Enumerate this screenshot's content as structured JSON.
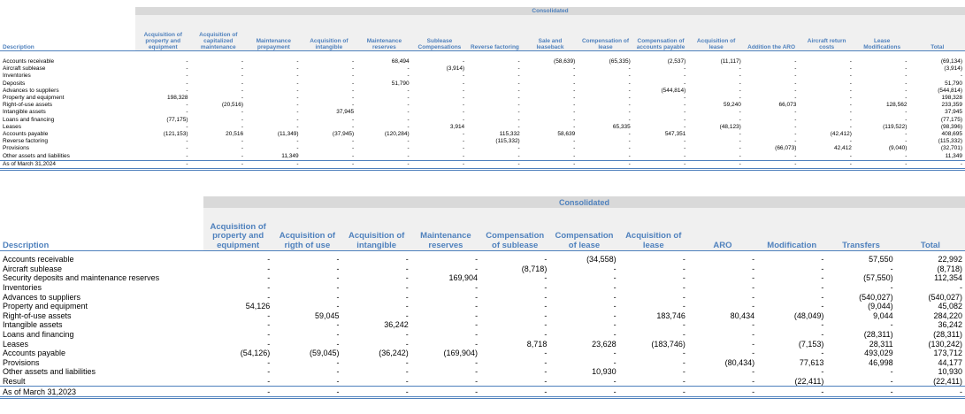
{
  "table1": {
    "header": "Consolidated",
    "description": "Description",
    "columns": [
      "Acquisition of property and equipment",
      "Acquisition of capitalized maintenance",
      "Maintenance prepayment",
      "Acquisition of intangible",
      "Maintenance reserves",
      "Sublease Compensations",
      "Reverse factoring",
      "Sale and leaseback",
      "Compensation of lease",
      "Compensation of accounts payable",
      "Acquisition of lease",
      "Addition the ARO",
      "Aircraft return costs",
      "Lease Modifications",
      "Total"
    ],
    "rows": [
      {
        "label": "Accounts receivable",
        "values": [
          "-",
          "-",
          "-",
          "-",
          "68,494",
          "-",
          "-",
          "(58,639)",
          "(65,335)",
          "(2,537)",
          "(11,117)",
          "-",
          "-",
          "-",
          "(69,134)"
        ]
      },
      {
        "label": "Aircraft sublease",
        "values": [
          "-",
          "-",
          "-",
          "-",
          "-",
          "(3,914)",
          "-",
          "-",
          "-",
          "-",
          "-",
          "-",
          "-",
          "-",
          "(3,914)"
        ]
      },
      {
        "label": "Inventories",
        "values": [
          "-",
          "-",
          "-",
          "-",
          "-",
          "-",
          "-",
          "-",
          "-",
          "-",
          "-",
          "-",
          "-",
          "-",
          "-"
        ]
      },
      {
        "label": "Deposits",
        "values": [
          "-",
          "-",
          "-",
          "-",
          "51,790",
          "-",
          "-",
          "-",
          "-",
          "-",
          "-",
          "-",
          "-",
          "-",
          "51,790"
        ]
      },
      {
        "label": "Advances to suppliers",
        "values": [
          "-",
          "-",
          "-",
          "-",
          "-",
          "-",
          "-",
          "-",
          "-",
          "(544,814)",
          "-",
          "-",
          "-",
          "-",
          "(544,814)"
        ]
      },
      {
        "label": "Property and equipment",
        "values": [
          "198,328",
          "-",
          "-",
          "-",
          "-",
          "-",
          "-",
          "-",
          "-",
          "-",
          "-",
          "-",
          "-",
          "-",
          "198,328"
        ]
      },
      {
        "label": "Right-of-use assets",
        "values": [
          "-",
          "(20,516)",
          "-",
          "-",
          "-",
          "-",
          "-",
          "-",
          "-",
          "-",
          "59,240",
          "66,073",
          "-",
          "128,562",
          "233,359"
        ]
      },
      {
        "label": "Intangible assets",
        "values": [
          "-",
          "-",
          "-",
          "37,945",
          "-",
          "-",
          "-",
          "-",
          "-",
          "-",
          "-",
          "-",
          "-",
          "-",
          "37,945"
        ]
      },
      {
        "label": "Loans and financing",
        "values": [
          "(77,175)",
          "-",
          "-",
          "-",
          "-",
          "-",
          "-",
          "-",
          "-",
          "-",
          "-",
          "-",
          "-",
          "-",
          "(77,175)"
        ]
      },
      {
        "label": "Leases",
        "values": [
          "-",
          "-",
          "-",
          "-",
          "-",
          "3,914",
          "-",
          "-",
          "65,335",
          "-",
          "(48,123)",
          "-",
          "-",
          "(119,522)",
          "(98,396)"
        ]
      },
      {
        "label": "Accounts payable",
        "values": [
          "(121,153)",
          "20,516",
          "(11,349)",
          "(37,945)",
          "(120,284)",
          "-",
          "115,332",
          "58,639",
          "-",
          "547,351",
          "-",
          "-",
          "(42,412)",
          "-",
          "408,695"
        ]
      },
      {
        "label": "Reverse factoring",
        "values": [
          "-",
          "-",
          "-",
          "-",
          "-",
          "-",
          "(115,332)",
          "-",
          "-",
          "-",
          "-",
          "-",
          "-",
          "-",
          "(115,332)"
        ]
      },
      {
        "label": "Provisions",
        "values": [
          "-",
          "-",
          "-",
          "-",
          "-",
          "-",
          "-",
          "-",
          "-",
          "-",
          "-",
          "(66,073)",
          "42,412",
          "(9,040)",
          "(32,701)"
        ]
      },
      {
        "label": "Other assets and liabilities",
        "values": [
          "-",
          "-",
          "11,349",
          "-",
          "-",
          "-",
          "-",
          "-",
          "-",
          "-",
          "-",
          "-",
          "-",
          "-",
          "11,349"
        ]
      },
      {
        "label": "As of March 31,2024",
        "values": [
          "-",
          "-",
          "-",
          "-",
          "-",
          "-",
          "-",
          "-",
          "-",
          "-",
          "-",
          "-",
          "-",
          "-",
          "-"
        ]
      }
    ]
  },
  "table2": {
    "header": "Consolidated",
    "description": "Description",
    "columns": [
      "Acquisition of property and equipment",
      "Acquisition of rigth of use",
      "Acquisition of intangible",
      "Maintenance reserves",
      "Compensation of sublease",
      "Compensation of lease",
      "Acquisition of lease",
      "ARO",
      "Modification",
      "Transfers",
      "Total"
    ],
    "rows": [
      {
        "label": "Accounts receivable",
        "values": [
          "-",
          "-",
          "-",
          "-",
          "-",
          "(34,558)",
          "-",
          "-",
          "-",
          "57,550",
          "22,992"
        ]
      },
      {
        "label": "Aircraft sublease",
        "values": [
          "-",
          "-",
          "-",
          "-",
          "(8,718)",
          "-",
          "-",
          "-",
          "-",
          "-",
          "(8,718)"
        ]
      },
      {
        "label": "Security deposits and maintenance reserves",
        "values": [
          "-",
          "-",
          "-",
          "169,904",
          "-",
          "-",
          "-",
          "-",
          "-",
          "(57,550)",
          "112,354"
        ]
      },
      {
        "label": "Inventories",
        "values": [
          "-",
          "-",
          "-",
          "-",
          "-",
          "-",
          "-",
          "-",
          "-",
          "-",
          "-"
        ]
      },
      {
        "label": "Advances to suppliers",
        "values": [
          "-",
          "-",
          "-",
          "-",
          "-",
          "-",
          "-",
          "-",
          "-",
          "(540,027)",
          "(540,027)"
        ]
      },
      {
        "label": "Property and equipment",
        "values": [
          "54,126",
          "-",
          "-",
          "-",
          "-",
          "-",
          "-",
          "-",
          "-",
          "(9,044)",
          "45,082"
        ]
      },
      {
        "label": "Right-of-use assets",
        "values": [
          "-",
          "59,045",
          "-",
          "-",
          "-",
          "-",
          "183,746",
          "80,434",
          "(48,049)",
          "9,044",
          "284,220"
        ]
      },
      {
        "label": "Intangible assets",
        "values": [
          "-",
          "-",
          "36,242",
          "-",
          "-",
          "-",
          "-",
          "-",
          "-",
          "-",
          "36,242"
        ]
      },
      {
        "label": "Loans and financing",
        "values": [
          "-",
          "-",
          "-",
          "-",
          "-",
          "-",
          "-",
          "-",
          "-",
          "(28,311)",
          "(28,311)"
        ]
      },
      {
        "label": "Leases",
        "values": [
          "-",
          "-",
          "-",
          "-",
          "8,718",
          "23,628",
          "(183,746)",
          "-",
          "(7,153)",
          "28,311",
          "(130,242)"
        ]
      },
      {
        "label": "Accounts payable",
        "values": [
          "(54,126)",
          "(59,045)",
          "(36,242)",
          "(169,904)",
          "-",
          "-",
          "-",
          "-",
          "-",
          "493,029",
          "173,712"
        ]
      },
      {
        "label": "Provisions",
        "values": [
          "-",
          "-",
          "-",
          "-",
          "-",
          "-",
          "-",
          "(80,434)",
          "77,613",
          "46,998",
          "44,177"
        ]
      },
      {
        "label": "Other assets and liabilities",
        "values": [
          "-",
          "-",
          "-",
          "-",
          "-",
          "10,930",
          "-",
          "-",
          "-",
          "-",
          "10,930"
        ]
      },
      {
        "label": "Result",
        "values": [
          "-",
          "-",
          "-",
          "-",
          "-",
          "-",
          "-",
          "-",
          "(22,411)",
          "-",
          "(22,411)"
        ]
      },
      {
        "label": "As of March 31,2023",
        "values": [
          "-",
          "-",
          "-",
          "-",
          "-",
          "-",
          "-",
          "-",
          "-",
          "-",
          "-"
        ]
      }
    ]
  }
}
